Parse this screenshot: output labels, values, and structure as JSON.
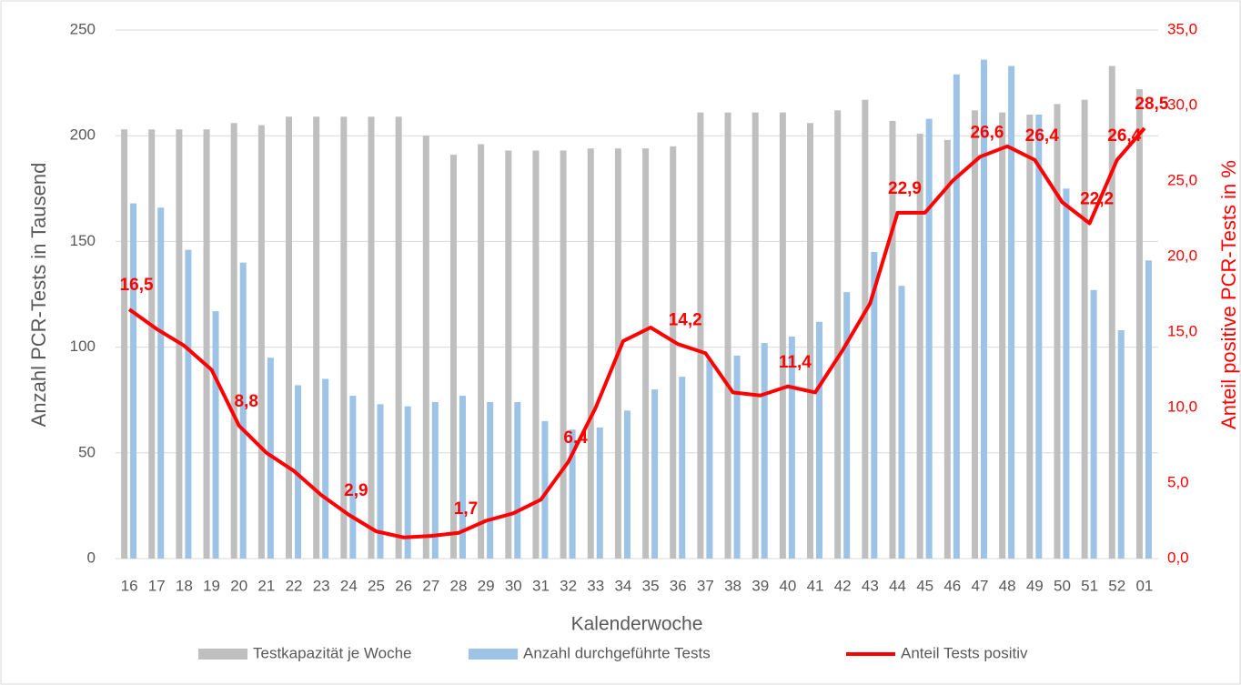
{
  "chart_data": {
    "type": "bar-line",
    "x_label": "Kalenderwoche",
    "y_label": "Anzahl PCR-Tests in Tausend",
    "y2_label": "Anteil positive PCR-Tests in %",
    "categories": [
      "16",
      "17",
      "18",
      "19",
      "20",
      "21",
      "22",
      "23",
      "24",
      "25",
      "26",
      "27",
      "28",
      "29",
      "30",
      "31",
      "32",
      "33",
      "34",
      "35",
      "36",
      "37",
      "38",
      "39",
      "40",
      "41",
      "42",
      "43",
      "44",
      "45",
      "46",
      "47",
      "48",
      "49",
      "50",
      "51",
      "52",
      "01"
    ],
    "ylim": [
      0,
      250
    ],
    "yticks": [
      0,
      50,
      100,
      150,
      200,
      250
    ],
    "y2lim": [
      0,
      35
    ],
    "y2ticks": [
      {
        "value": 0,
        "label": "0,0"
      },
      {
        "value": 5,
        "label": "5,0"
      },
      {
        "value": 10,
        "label": "10,0"
      },
      {
        "value": 15,
        "label": "15,0"
      },
      {
        "value": 20,
        "label": "20,0"
      },
      {
        "value": 25,
        "label": "25,0"
      },
      {
        "value": 30,
        "label": "30,0"
      },
      {
        "value": 35,
        "label": "35,0"
      }
    ],
    "grid": true,
    "series": [
      {
        "name": "Testkapazität je Woche",
        "type": "bar",
        "color": "#bfbfbf",
        "values": [
          203,
          203,
          203,
          203,
          206,
          205,
          209,
          209,
          209,
          209,
          209,
          200,
          191,
          196,
          193,
          193,
          193,
          194,
          194,
          194,
          195,
          211,
          211,
          211,
          211,
          206,
          212,
          217,
          207,
          201,
          198,
          212,
          211,
          210,
          215,
          217,
          233,
          222
        ]
      },
      {
        "name": "Anzahl durchgeführte Tests",
        "type": "bar",
        "color": "#9dc3e6",
        "values": [
          168,
          166,
          146,
          117,
          140,
          95,
          82,
          85,
          77,
          73,
          72,
          74,
          77,
          74,
          74,
          65,
          61,
          62,
          70,
          80,
          86,
          94,
          96,
          102,
          105,
          112,
          126,
          145,
          129,
          208,
          229,
          236,
          233,
          210,
          175,
          127,
          108,
          141
        ]
      },
      {
        "name": "Anteil Tests positiv",
        "type": "line",
        "axis": "y2",
        "color": "#ff0000",
        "values": [
          16.5,
          15.2,
          14.1,
          12.5,
          8.8,
          7.0,
          5.8,
          4.2,
          2.9,
          1.8,
          1.4,
          1.5,
          1.7,
          2.5,
          3.0,
          3.9,
          6.4,
          10.0,
          14.4,
          15.3,
          14.2,
          13.6,
          11.0,
          10.8,
          11.4,
          11.0,
          13.8,
          16.9,
          22.9,
          22.9,
          25.0,
          26.6,
          27.3,
          26.4,
          23.6,
          22.2,
          26.4,
          28.5
        ],
        "value_labels": [
          "16,5",
          null,
          null,
          null,
          "8,8",
          null,
          null,
          null,
          "2,9",
          null,
          null,
          null,
          "1,7",
          null,
          null,
          null,
          "6,4",
          null,
          null,
          null,
          "14,2",
          null,
          null,
          null,
          "11,4",
          null,
          null,
          null,
          "22,9",
          null,
          null,
          "26,6",
          null,
          "26,4",
          null,
          "22,2",
          "26,4",
          "28,5"
        ]
      }
    ]
  }
}
